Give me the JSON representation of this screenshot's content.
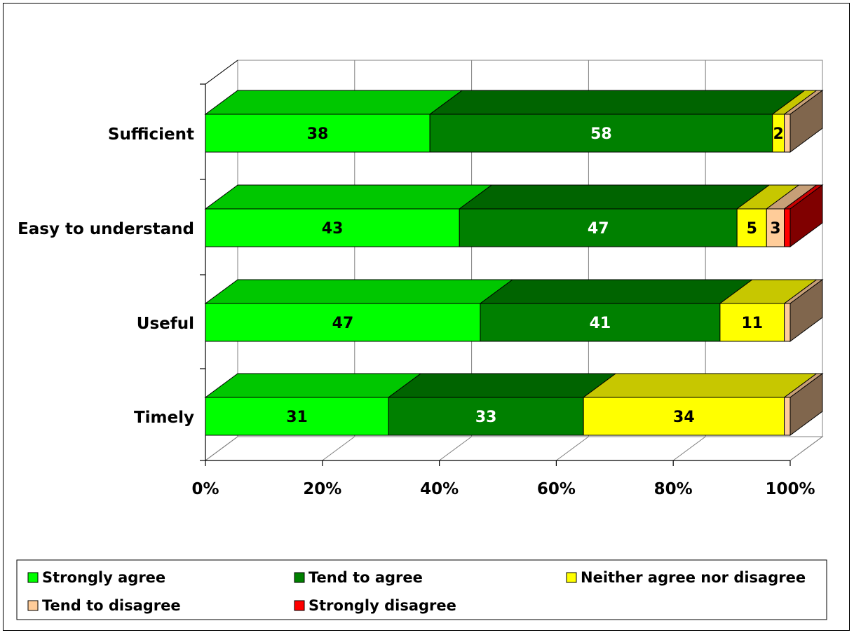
{
  "chart_data": {
    "type": "bar",
    "orientation": "horizontal",
    "stacked": "percent",
    "style": "3d",
    "categories": [
      "Sufficient",
      "Easy to understand",
      "Useful",
      "Timely"
    ],
    "series": [
      {
        "name": "Strongly agree",
        "color": "#00ff00",
        "values": [
          38,
          43,
          47,
          31
        ]
      },
      {
        "name": "Tend to agree",
        "color": "#008000",
        "values": [
          58,
          47,
          41,
          33
        ]
      },
      {
        "name": "Neither agree nor disagree",
        "color": "#ffff00",
        "values": [
          2,
          5,
          11,
          34
        ]
      },
      {
        "name": "Tend to disagree",
        "color": "#ffcc99",
        "values": [
          1,
          3,
          1,
          1
        ]
      },
      {
        "name": "Strongly disagree",
        "color": "#ff0000",
        "values": [
          0,
          1,
          0,
          0
        ]
      }
    ],
    "data_labels": [
      [
        "38",
        "58",
        "2",
        "",
        ""
      ],
      [
        "43",
        "47",
        "5",
        "3",
        ""
      ],
      [
        "47",
        "41",
        "11",
        "",
        ""
      ],
      [
        "31",
        "33",
        "34",
        "",
        ""
      ]
    ],
    "label_colors": [
      "#000000",
      "#ffffff",
      "#000000",
      "#000000",
      "#000000"
    ],
    "x_ticks": [
      "0%",
      "20%",
      "40%",
      "60%",
      "80%",
      "100%"
    ],
    "xlim": [
      0,
      100
    ],
    "grid": true,
    "legend_position": "bottom",
    "title": "",
    "xlabel": "",
    "ylabel": ""
  }
}
